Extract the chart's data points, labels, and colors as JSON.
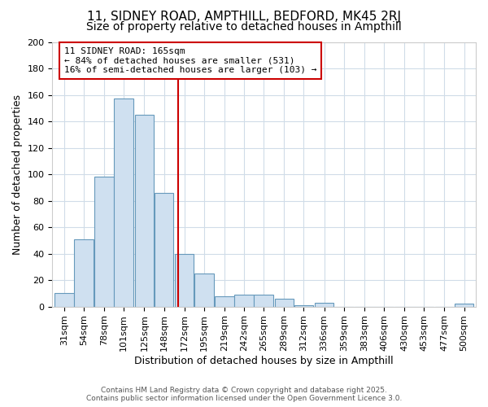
{
  "title_line1": "11, SIDNEY ROAD, AMPTHILL, BEDFORD, MK45 2RJ",
  "title_line2": "Size of property relative to detached houses in Ampthill",
  "xlabel": "Distribution of detached houses by size in Ampthill",
  "ylabel": "Number of detached properties",
  "categories": [
    "31sqm",
    "54sqm",
    "78sqm",
    "101sqm",
    "125sqm",
    "148sqm",
    "172sqm",
    "195sqm",
    "219sqm",
    "242sqm",
    "265sqm",
    "289sqm",
    "312sqm",
    "336sqm",
    "359sqm",
    "383sqm",
    "406sqm",
    "430sqm",
    "453sqm",
    "477sqm",
    "500sqm"
  ],
  "values": [
    10,
    51,
    98,
    157,
    145,
    86,
    40,
    25,
    8,
    9,
    9,
    6,
    1,
    3,
    0,
    0,
    0,
    0,
    0,
    0,
    2
  ],
  "bar_color": "#cfe0f0",
  "bar_edge_color": "#6699bb",
  "vline_color": "#cc0000",
  "annotation_title": "11 SIDNEY ROAD: 165sqm",
  "annotation_line2": "← 84% of detached houses are smaller (531)",
  "annotation_line3": "16% of semi-detached houses are larger (103) →",
  "annotation_box_facecolor": "#ffffff",
  "annotation_box_edgecolor": "#cc0000",
  "background_color": "#ffffff",
  "plot_bg_color": "#ffffff",
  "grid_color": "#d0dce8",
  "footer_line1": "Contains HM Land Registry data © Crown copyright and database right 2025.",
  "footer_line2": "Contains public sector information licensed under the Open Government Licence 3.0.",
  "ylim": [
    0,
    200
  ],
  "title1_fontsize": 11,
  "title2_fontsize": 10,
  "xlabel_fontsize": 9,
  "ylabel_fontsize": 9,
  "tick_fontsize": 8,
  "annot_fontsize": 8
}
